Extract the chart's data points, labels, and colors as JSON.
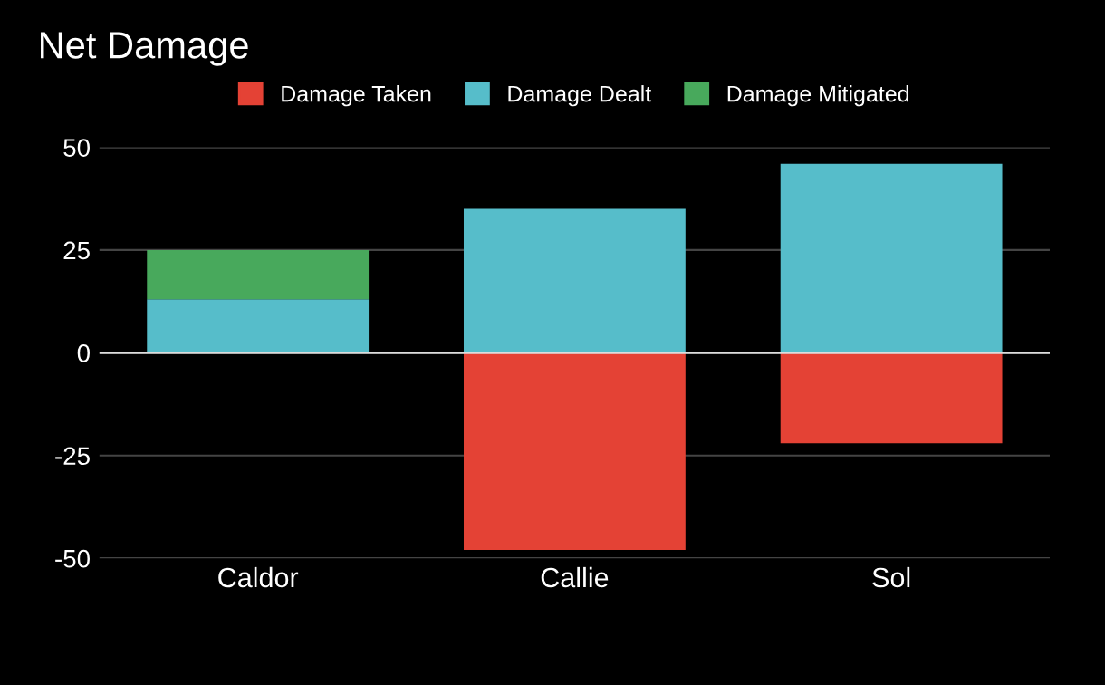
{
  "chart_data": {
    "type": "bar",
    "title": "Net Damage",
    "stacked": true,
    "categories": [
      "Caldor",
      "Callie",
      "Sol"
    ],
    "series": [
      {
        "name": "Damage Taken",
        "color": "#e44235",
        "values": [
          0,
          -48,
          -22
        ]
      },
      {
        "name": "Damage Dealt",
        "color": "#56bdca",
        "values": [
          13,
          35,
          46
        ]
      },
      {
        "name": "Damage Mitigated",
        "color": "#48a95c",
        "values": [
          12,
          0,
          0
        ]
      }
    ],
    "ylim": [
      -50,
      50
    ],
    "yticks": [
      -50,
      -25,
      0,
      25,
      50
    ],
    "grid": "y",
    "legend": "top"
  }
}
